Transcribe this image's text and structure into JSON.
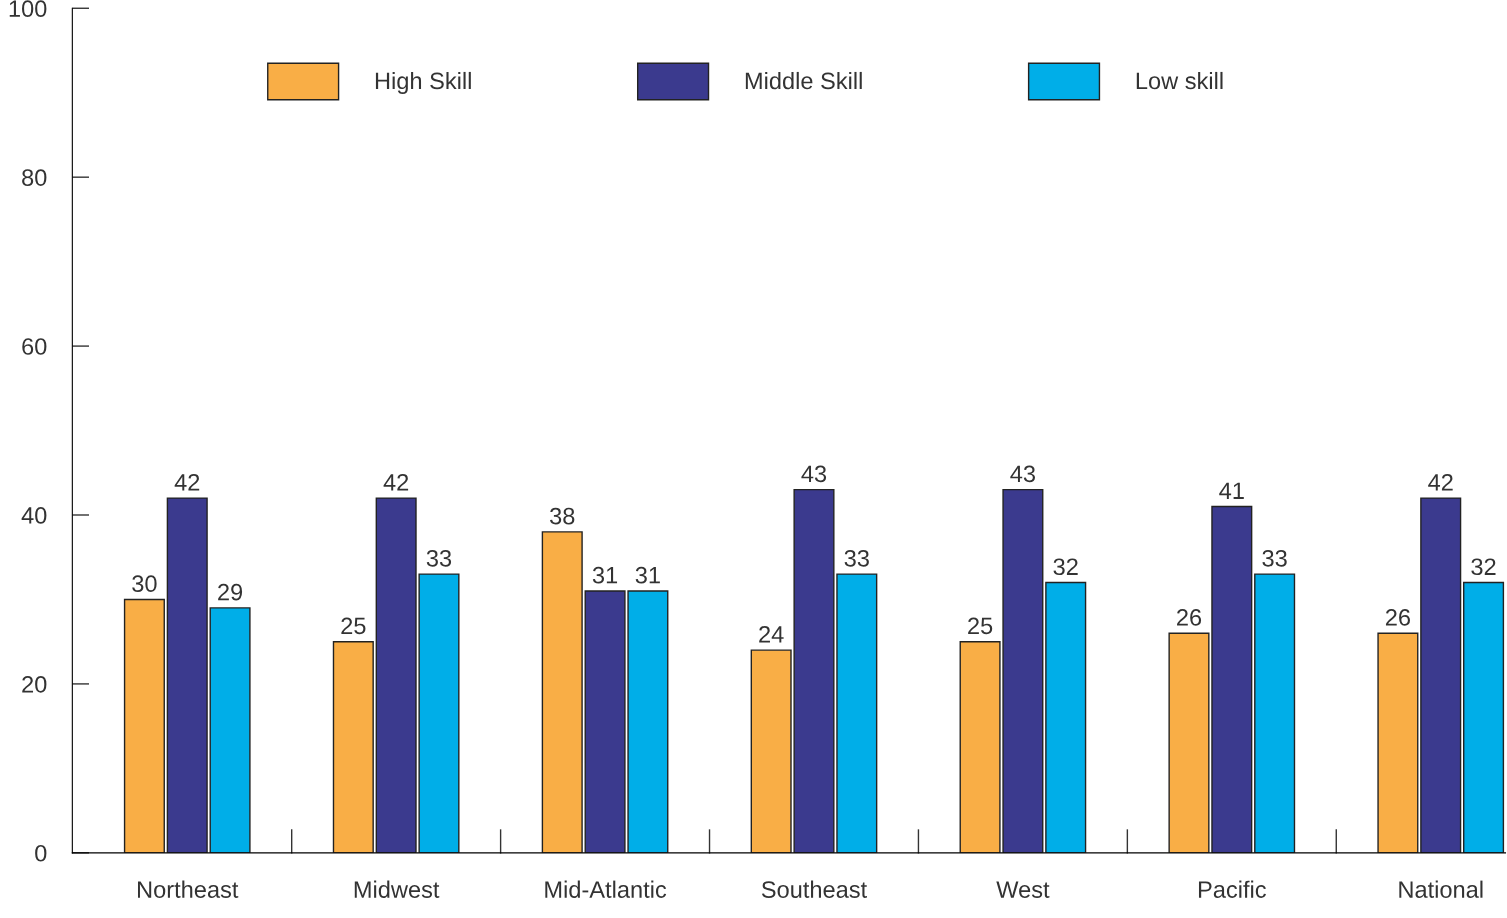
{
  "chart_data": {
    "type": "bar",
    "categories": [
      "Northeast",
      "Midwest",
      "Mid-Atlantic",
      "Southeast",
      "West",
      "Pacific",
      "National"
    ],
    "series": [
      {
        "name": "High Skill",
        "color": "#f9ae46",
        "values": [
          30,
          25,
          38,
          24,
          25,
          26,
          26
        ]
      },
      {
        "name": "Middle Skill",
        "color": "#3b3a8e",
        "values": [
          42,
          42,
          31,
          43,
          43,
          41,
          42
        ]
      },
      {
        "name": "Low skill",
        "color": "#00aee8",
        "values": [
          29,
          33,
          31,
          33,
          32,
          33,
          32
        ]
      }
    ],
    "ylim": [
      0,
      100
    ],
    "yticks": [
      0,
      20,
      40,
      60,
      80,
      100
    ],
    "data_labels": true,
    "legend": "top",
    "grid": false
  }
}
